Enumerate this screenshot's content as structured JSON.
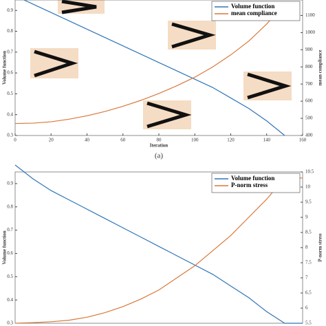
{
  "chart_data": [
    {
      "type": "line",
      "x_label": "Iteration",
      "y_label": "Volume function",
      "y2_label": "mean compliance",
      "caption": "(a)",
      "x": [
        0,
        10,
        20,
        30,
        40,
        50,
        60,
        70,
        80,
        90,
        100,
        110,
        120,
        130,
        140,
        150
      ],
      "xlim": [
        0,
        160
      ],
      "xticks": [
        0,
        20,
        40,
        60,
        80,
        100,
        120,
        140,
        160
      ],
      "ylim": [
        0.3,
        0.95
      ],
      "yticks": [
        0.3,
        0.4,
        0.5,
        0.6,
        0.7,
        0.8,
        0.9
      ],
      "y2lim": [
        400,
        1190
      ],
      "y2ticks": [
        400,
        500,
        600,
        700,
        800,
        900,
        1000,
        1100
      ],
      "series": [
        {
          "name": "Volume function",
          "color": "#2e75b6",
          "values": [
            0.97,
            0.93,
            0.89,
            0.85,
            0.81,
            0.77,
            0.73,
            0.69,
            0.65,
            0.61,
            0.57,
            0.53,
            0.48,
            0.43,
            0.37,
            0.3
          ]
        },
        {
          "name": "mean compliance",
          "color": "#d9773a",
          "axis": "y2",
          "values": [
            470,
            472,
            480,
            495,
            515,
            540,
            570,
            605,
            645,
            690,
            740,
            800,
            870,
            950,
            1050,
            1170
          ]
        }
      ]
    },
    {
      "type": "line",
      "y_label": "Volume function",
      "y2_label": "P-norm stress",
      "x": [
        0,
        10,
        20,
        30,
        40,
        50,
        60,
        70,
        80,
        90,
        100,
        110,
        120,
        130,
        140,
        150,
        160
      ],
      "xlim": [
        0,
        160
      ],
      "ylim": [
        0.3,
        0.95
      ],
      "yticks": [
        0.3,
        0.4,
        0.5,
        0.6,
        0.7,
        0.8,
        0.9
      ],
      "y2lim": [
        5.5,
        10.5
      ],
      "y2ticks": [
        5.5,
        6,
        6.5,
        7,
        7.5,
        8,
        8.5,
        9,
        9.5,
        10,
        10.5
      ],
      "series": [
        {
          "name": "Volume function",
          "color": "#2e75b6",
          "values": [
            0.98,
            0.92,
            0.87,
            0.83,
            0.79,
            0.75,
            0.71,
            0.67,
            0.63,
            0.59,
            0.55,
            0.51,
            0.46,
            0.41,
            0.35,
            0.3,
            0.3
          ]
        },
        {
          "name": "P-norm stress",
          "color": "#d9773a",
          "axis": "y2",
          "values": [
            5.5,
            5.52,
            5.55,
            5.6,
            5.7,
            5.85,
            6.05,
            6.3,
            6.6,
            7.0,
            7.4,
            7.9,
            8.4,
            9.0,
            9.6,
            10.3,
            10.3
          ]
        }
      ]
    }
  ]
}
